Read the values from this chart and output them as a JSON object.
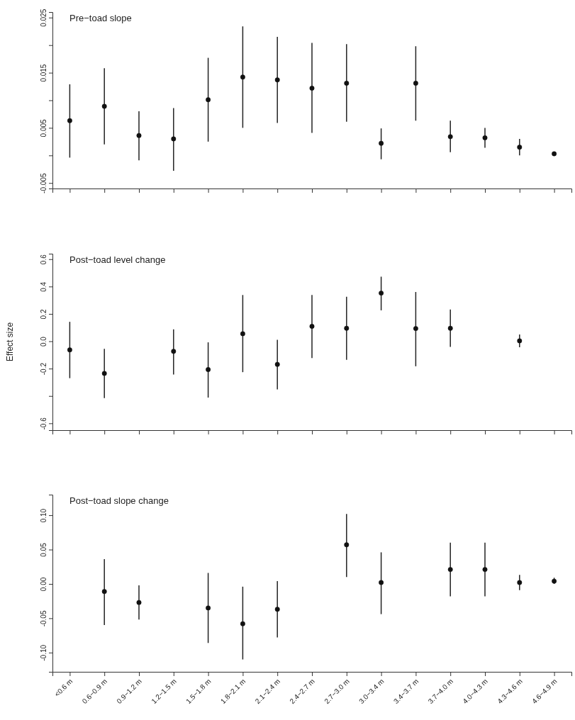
{
  "chart_data": [
    {
      "type": "scatter",
      "title": "Pre−toad slope",
      "categories": [
        null,
        null,
        null,
        null,
        null,
        null,
        null,
        null,
        null,
        null,
        null,
        null,
        null,
        null,
        null
      ],
      "values": [
        0.0063,
        0.0089,
        0.0036,
        0.003,
        0.0101,
        0.0142,
        0.0137,
        0.0122,
        0.0131,
        0.0022,
        0.0131,
        0.0034,
        0.0032,
        0.0015,
        0.0003
      ],
      "errors": [
        [
          -0.0004,
          0.0129
        ],
        [
          0.002,
          0.0158
        ],
        [
          -0.0009,
          0.008
        ],
        [
          -0.0028,
          0.0086
        ],
        [
          0.0025,
          0.0177
        ],
        [
          0.005,
          0.0234
        ],
        [
          0.0059,
          0.0215
        ],
        [
          0.0041,
          0.0204
        ],
        [
          0.0061,
          0.0202
        ],
        [
          -0.0007,
          0.0049
        ],
        [
          0.0063,
          0.0198
        ],
        [
          0.0006,
          0.0063
        ],
        [
          0.0014,
          0.005
        ],
        [
          0.0,
          0.003
        ],
        null
      ],
      "ylim": [
        -0.006,
        0.026
      ],
      "yticks": [
        -0.005,
        {
          "value": 0,
          "label": null
        },
        0.005,
        {
          "value": 0.01,
          "label": null
        },
        0.015,
        {
          "value": 0.02,
          "label": null
        },
        0.025
      ],
      "marker": "circle",
      "tick_labels": "y"
    },
    {
      "type": "scatter",
      "title": "Post−toad level change",
      "ylabel": "Effect size",
      "categories": [
        null,
        null,
        null,
        null,
        null,
        null,
        null,
        null,
        null,
        null,
        null,
        null,
        null,
        null,
        null
      ],
      "values": [
        -0.063,
        -0.235,
        null,
        -0.074,
        -0.207,
        0.055,
        -0.169,
        0.109,
        0.095,
        0.352,
        0.093,
        0.095,
        null,
        0.003,
        null
      ],
      "errors": [
        [
          -0.27,
          0.142
        ],
        [
          -0.415,
          -0.055
        ],
        null,
        [
          -0.243,
          0.087
        ],
        [
          -0.412,
          -0.008
        ],
        [
          -0.226,
          0.338
        ],
        [
          -0.352,
          0.011
        ],
        [
          -0.123,
          0.338
        ],
        [
          -0.136,
          0.325
        ],
        [
          0.226,
          0.472
        ],
        [
          -0.183,
          0.36
        ],
        [
          -0.041,
          0.232
        ],
        null,
        [
          -0.044,
          0.049
        ],
        null
      ],
      "ylim": [
        -0.65,
        0.64
      ],
      "yticks": [
        -0.6,
        {
          "value": -0.4,
          "label": null
        },
        -0.2,
        {
          "value": 0,
          "label": "0.0"
        },
        0.2,
        0.4,
        0.6
      ],
      "marker": "circle",
      "tick_labels": "y"
    },
    {
      "type": "scatter",
      "title": "Post−toad slope change",
      "categories": [
        "<0.6 m",
        "0.6−0.9 m",
        "0.9−1.2 m",
        "1.2−1.5 m",
        "1.5−1.8 m",
        "1.8−2.1 m",
        "2.1−2.4 m",
        "2.4−2.7 m",
        "2.7−3.0 m",
        "3.0−3.4 m",
        "3.4−3.7 m",
        "3.7−4.0 m",
        "4.0−4.3 m",
        "4.3−4.6 m",
        "4.6−4.9 m"
      ],
      "values": [
        null,
        -0.011,
        -0.027,
        null,
        -0.035,
        -0.058,
        -0.037,
        null,
        0.057,
        0.002,
        null,
        0.021,
        0.021,
        0.002,
        0.004
      ],
      "errors": [
        null,
        [
          -0.06,
          0.036
        ],
        [
          -0.052,
          -0.002
        ],
        null,
        [
          -0.086,
          0.016
        ],
        [
          -0.11,
          -0.004
        ],
        [
          -0.078,
          0.004
        ],
        null,
        [
          0.01,
          0.102
        ],
        [
          -0.044,
          0.046
        ],
        null,
        [
          -0.018,
          0.06
        ],
        [
          -0.018,
          0.06
        ],
        [
          -0.009,
          0.013
        ],
        [
          0.0,
          0.009
        ]
      ],
      "ylim": [
        -0.128,
        0.13
      ],
      "yticks": [
        {
          "value": -0.1,
          "label": "-0.10"
        },
        {
          "value": -0.05,
          "label": "-0.05"
        },
        {
          "value": 0,
          "label": "0.00"
        },
        {
          "value": 0.05,
          "label": "0.05"
        },
        {
          "value": 0.1,
          "label": "0.10"
        }
      ],
      "marker": "circle"
    }
  ]
}
